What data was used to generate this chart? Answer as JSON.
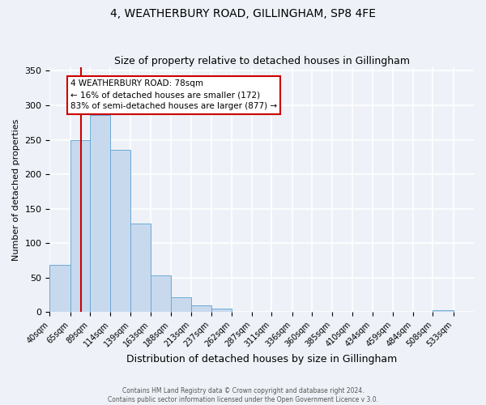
{
  "title": "4, WEATHERBURY ROAD, GILLINGHAM, SP8 4FE",
  "subtitle": "Size of property relative to detached houses in Gillingham",
  "xlabel": "Distribution of detached houses by size in Gillingham",
  "ylabel": "Number of detached properties",
  "bin_edges": [
    40,
    65,
    89,
    114,
    139,
    163,
    188,
    213,
    237,
    262,
    287,
    311,
    336,
    360,
    385,
    410,
    434,
    459,
    484,
    508,
    533
  ],
  "bar_heights": [
    69,
    250,
    286,
    235,
    128,
    53,
    22,
    10,
    5,
    1,
    0,
    0,
    0,
    0,
    0,
    0,
    0,
    0,
    0,
    3
  ],
  "tick_labels": [
    "40sqm",
    "65sqm",
    "89sqm",
    "114sqm",
    "139sqm",
    "163sqm",
    "188sqm",
    "213sqm",
    "237sqm",
    "262sqm",
    "287sqm",
    "311sqm",
    "336sqm",
    "360sqm",
    "385sqm",
    "410sqm",
    "434sqm",
    "459sqm",
    "484sqm",
    "508sqm",
    "533sqm"
  ],
  "tick_positions": [
    40,
    65,
    89,
    114,
    139,
    163,
    188,
    213,
    237,
    262,
    287,
    311,
    336,
    360,
    385,
    410,
    434,
    459,
    484,
    508,
    533
  ],
  "bar_color": "#c8d9ee",
  "bar_edge_color": "#6aaad4",
  "vline_x": 78,
  "vline_color": "#cc0000",
  "ylim": [
    0,
    355
  ],
  "xlim": [
    40,
    558
  ],
  "annotation_text": "4 WEATHERBURY ROAD: 78sqm\n← 16% of detached houses are smaller (172)\n83% of semi-detached houses are larger (877) →",
  "footer_line1": "Contains HM Land Registry data © Crown copyright and database right 2024.",
  "footer_line2": "Contains public sector information licensed under the Open Government Licence v 3.0.",
  "background_color": "#eef2f8",
  "grid_color": "#ffffff",
  "title_fontsize": 10,
  "subtitle_fontsize": 9,
  "axis_label_fontsize": 8,
  "tick_fontsize": 7,
  "ytick_values": [
    0,
    50,
    100,
    150,
    200,
    250,
    300,
    350
  ]
}
